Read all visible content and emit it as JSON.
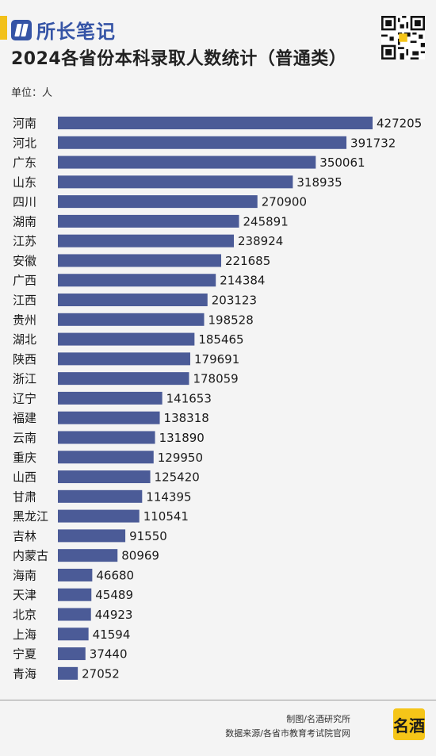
{
  "header": {
    "brand": "所长笔记",
    "title": "2024各省份本科录取人数统计（普通类）",
    "unit": "单位：人"
  },
  "footer": {
    "credit_chart": "制图/名酒研究所",
    "credit_source": "数据来源/各省市教育考试院官网",
    "badge_text": "名酒"
  },
  "colors": {
    "bar": "#4b5b97",
    "accent": "#f2c11a",
    "brand": "#3554a6"
  },
  "chart_data": {
    "type": "bar",
    "orientation": "horizontal",
    "title": "2024各省份本科录取人数统计（普通类）",
    "unit": "人",
    "categories": [
      "河南",
      "河北",
      "广东",
      "山东",
      "四川",
      "湖南",
      "江苏",
      "安徽",
      "广西",
      "江西",
      "贵州",
      "湖北",
      "陕西",
      "浙江",
      "辽宁",
      "福建",
      "云南",
      "重庆",
      "山西",
      "甘肃",
      "黑龙江",
      "吉林",
      "内蒙古",
      "海南",
      "天津",
      "北京",
      "上海",
      "宁夏",
      "青海"
    ],
    "values": [
      427205,
      391732,
      350061,
      318935,
      270900,
      245891,
      238924,
      221685,
      214384,
      203123,
      198528,
      185465,
      179691,
      178059,
      141653,
      138318,
      131890,
      129950,
      125420,
      114395,
      110541,
      91550,
      80969,
      46680,
      45489,
      44923,
      41594,
      37440,
      27052
    ],
    "data_labels": true,
    "grid": false
  }
}
